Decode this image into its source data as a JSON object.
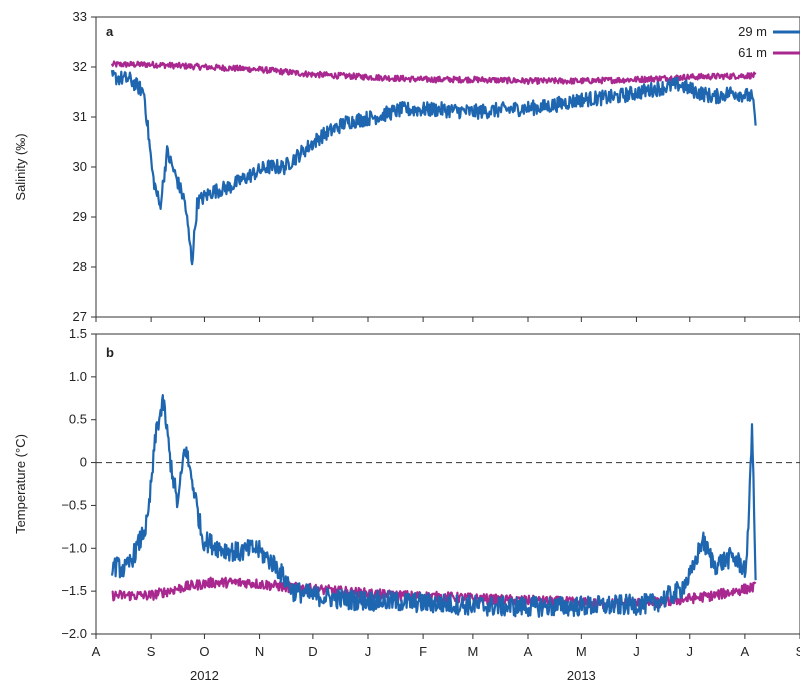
{
  "chart_data": [
    {
      "type": "line",
      "panel_label": "a",
      "ylabel": "Salinity (‰)",
      "ylim": [
        27,
        33
      ],
      "yticks": [
        "27",
        "28",
        "29",
        "30",
        "31",
        "32",
        "33"
      ],
      "legend": {
        "position": "top-right",
        "entries": [
          "29 m",
          "61 m"
        ]
      },
      "colors": {
        "29 m": "#1f66b0",
        "61 m": "#a8288f"
      },
      "series": [
        {
          "name": "29 m",
          "noise": 0.15,
          "points": [
            [
              "2012-08-10",
              31.8
            ],
            [
              "2012-08-20",
              31.75
            ],
            [
              "2012-08-28",
              31.5
            ],
            [
              "2012-09-02",
              29.8
            ],
            [
              "2012-09-06",
              29.2
            ],
            [
              "2012-09-10",
              30.3
            ],
            [
              "2012-09-15",
              29.8
            ],
            [
              "2012-09-20",
              29.3
            ],
            [
              "2012-09-24",
              28.1
            ],
            [
              "2012-09-27",
              29.3
            ],
            [
              "2012-10-05",
              29.5
            ],
            [
              "2012-10-15",
              29.6
            ],
            [
              "2012-10-25",
              29.8
            ],
            [
              "2012-11-05",
              30.0
            ],
            [
              "2012-11-15",
              30.0
            ],
            [
              "2012-11-25",
              30.3
            ],
            [
              "2012-12-05",
              30.6
            ],
            [
              "2012-12-20",
              30.9
            ],
            [
              "2013-01-05",
              31.0
            ],
            [
              "2013-01-20",
              31.15
            ],
            [
              "2013-02-10",
              31.15
            ],
            [
              "2013-03-01",
              31.1
            ],
            [
              "2013-03-20",
              31.15
            ],
            [
              "2013-04-10",
              31.2
            ],
            [
              "2013-05-01",
              31.35
            ],
            [
              "2013-05-20",
              31.4
            ],
            [
              "2013-06-10",
              31.55
            ],
            [
              "2013-06-25",
              31.65
            ],
            [
              "2013-07-05",
              31.5
            ],
            [
              "2013-07-15",
              31.4
            ],
            [
              "2013-07-25",
              31.5
            ],
            [
              "2013-08-05",
              31.4
            ],
            [
              "2013-08-07",
              30.9
            ]
          ]
        },
        {
          "name": "61 m",
          "noise": 0.06,
          "points": [
            [
              "2012-08-10",
              32.05
            ],
            [
              "2012-09-01",
              32.05
            ],
            [
              "2012-10-01",
              32.0
            ],
            [
              "2012-11-01",
              31.95
            ],
            [
              "2012-12-01",
              31.85
            ],
            [
              "2013-01-01",
              31.8
            ],
            [
              "2013-02-01",
              31.75
            ],
            [
              "2013-03-01",
              31.75
            ],
            [
              "2013-04-01",
              31.72
            ],
            [
              "2013-05-01",
              31.72
            ],
            [
              "2013-06-01",
              31.75
            ],
            [
              "2013-07-01",
              31.8
            ],
            [
              "2013-08-07",
              31.83
            ]
          ]
        }
      ]
    },
    {
      "type": "line",
      "panel_label": "b",
      "ylabel": "Temperature (°C)",
      "ylim": [
        -2.0,
        1.5
      ],
      "yticks": [
        "−2.0",
        "−1.5",
        "−1.0",
        "−0.5",
        "0",
        "0.5",
        "1.0",
        "1.5"
      ],
      "reference_line": {
        "y": 0,
        "style": "dashed"
      },
      "colors": {
        "29 m": "#1f66b0",
        "61 m": "#a8288f"
      },
      "series": [
        {
          "name": "29 m",
          "noise": 0.12,
          "points": [
            [
              "2012-08-10",
              -1.2
            ],
            [
              "2012-08-18",
              -1.25
            ],
            [
              "2012-08-24",
              -1.0
            ],
            [
              "2012-08-30",
              -0.7
            ],
            [
              "2012-09-04",
              0.4
            ],
            [
              "2012-09-08",
              0.7
            ],
            [
              "2012-09-12",
              0.0
            ],
            [
              "2012-09-16",
              -0.5
            ],
            [
              "2012-09-20",
              0.2
            ],
            [
              "2012-09-25",
              -0.3
            ],
            [
              "2012-09-30",
              -0.9
            ],
            [
              "2012-10-10",
              -1.0
            ],
            [
              "2012-10-20",
              -1.05
            ],
            [
              "2012-10-30",
              -1.0
            ],
            [
              "2012-11-10",
              -1.2
            ],
            [
              "2012-11-20",
              -1.5
            ],
            [
              "2012-12-01",
              -1.55
            ],
            [
              "2012-12-20",
              -1.6
            ],
            [
              "2013-01-15",
              -1.62
            ],
            [
              "2013-02-15",
              -1.65
            ],
            [
              "2013-03-15",
              -1.68
            ],
            [
              "2013-04-15",
              -1.68
            ],
            [
              "2013-05-15",
              -1.67
            ],
            [
              "2013-06-10",
              -1.65
            ],
            [
              "2013-06-25",
              -1.5
            ],
            [
              "2013-07-02",
              -1.3
            ],
            [
              "2013-07-08",
              -0.9
            ],
            [
              "2013-07-15",
              -1.2
            ],
            [
              "2013-07-25",
              -1.1
            ],
            [
              "2013-08-02",
              -1.25
            ],
            [
              "2013-08-05",
              0.45
            ],
            [
              "2013-08-07",
              -1.3
            ]
          ]
        },
        {
          "name": "61 m",
          "noise": 0.06,
          "points": [
            [
              "2012-08-10",
              -1.55
            ],
            [
              "2012-09-01",
              -1.55
            ],
            [
              "2012-09-20",
              -1.45
            ],
            [
              "2012-10-05",
              -1.4
            ],
            [
              "2012-10-25",
              -1.4
            ],
            [
              "2012-11-15",
              -1.45
            ],
            [
              "2012-12-15",
              -1.5
            ],
            [
              "2013-01-15",
              -1.55
            ],
            [
              "2013-02-15",
              -1.57
            ],
            [
              "2013-03-15",
              -1.6
            ],
            [
              "2013-04-15",
              -1.62
            ],
            [
              "2013-05-15",
              -1.65
            ],
            [
              "2013-06-15",
              -1.63
            ],
            [
              "2013-07-15",
              -1.55
            ],
            [
              "2013-08-07",
              -1.45
            ]
          ]
        }
      ]
    }
  ],
  "x_axis": {
    "start": "2012-08-01",
    "end": "2013-09-01",
    "ticks": [
      [
        "2012-08-01",
        "A"
      ],
      [
        "2012-09-01",
        "S"
      ],
      [
        "2012-10-01",
        "O"
      ],
      [
        "2012-11-01",
        "N"
      ],
      [
        "2012-12-01",
        "D"
      ],
      [
        "2013-01-01",
        "J"
      ],
      [
        "2013-02-01",
        "F"
      ],
      [
        "2013-03-01",
        "M"
      ],
      [
        "2013-04-01",
        "A"
      ],
      [
        "2013-05-01",
        "M"
      ],
      [
        "2013-06-01",
        "J"
      ],
      [
        "2013-07-01",
        "J"
      ],
      [
        "2013-08-01",
        "A"
      ],
      [
        "2013-09-01",
        "S"
      ]
    ],
    "year_labels": [
      [
        "2012-10-01",
        "2012"
      ],
      [
        "2013-05-01",
        "2013"
      ]
    ]
  }
}
